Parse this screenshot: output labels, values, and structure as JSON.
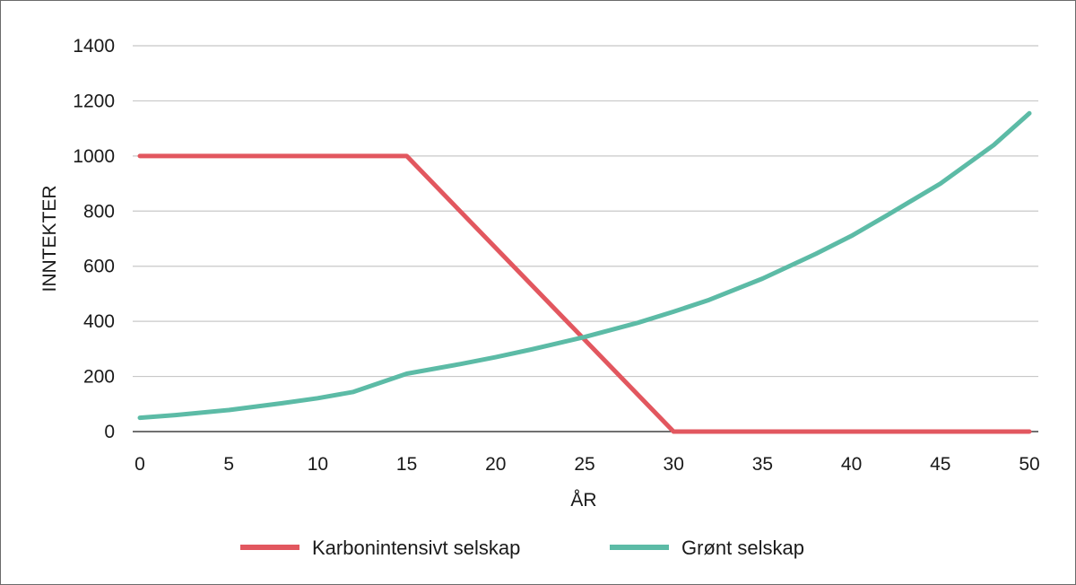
{
  "chart_data": {
    "type": "line",
    "xlabel": "ÅR",
    "ylabel": "INNTEKTER",
    "xlim": [
      0,
      50
    ],
    "ylim": [
      0,
      1400
    ],
    "x_ticks": [
      0,
      5,
      10,
      15,
      20,
      25,
      30,
      35,
      40,
      45,
      50
    ],
    "y_ticks": [
      0,
      200,
      400,
      600,
      800,
      1000,
      1200,
      1400
    ],
    "grid": true,
    "legend_position": "bottom",
    "series": [
      {
        "name": "Karbonintensivt selskap",
        "color": "#e2575f",
        "x": [
          0,
          15,
          30,
          50
        ],
        "y": [
          1000,
          1000,
          0,
          0
        ]
      },
      {
        "name": "Grønt selskap",
        "color": "#5cbba6",
        "x": [
          0,
          2,
          5,
          8,
          10,
          12,
          15,
          18,
          20,
          22,
          25,
          28,
          30,
          32,
          35,
          38,
          40,
          42,
          45,
          48,
          50
        ],
        "y": [
          50,
          60,
          78,
          103,
          121,
          144,
          210,
          245,
          270,
          298,
          343,
          395,
          435,
          478,
          555,
          645,
          710,
          785,
          900,
          1040,
          1155
        ]
      }
    ]
  }
}
